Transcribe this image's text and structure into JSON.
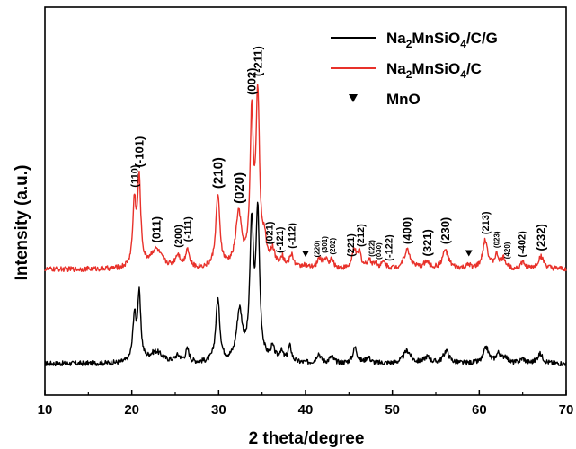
{
  "chart_data": {
    "type": "line",
    "xlabel": "2 theta/degree",
    "ylabel": "Intensity (a.u.)",
    "xlim": [
      10,
      70
    ],
    "xticks": [
      10,
      20,
      30,
      40,
      50,
      60,
      70
    ],
    "y_tick_labels": false,
    "legend": {
      "position": "top-right",
      "entries": [
        {
          "prefix": "Na",
          "sub1": "2",
          "mid": "MnSiO",
          "sub2": "4",
          "suffix": "/C/G",
          "color": "#000000",
          "marker": "line"
        },
        {
          "prefix": "Na",
          "sub1": "2",
          "mid": "MnSiO",
          "sub2": "4",
          "suffix": "/C",
          "color": "#e8312a",
          "marker": "line"
        },
        {
          "prefix": "MnO",
          "sub1": "",
          "mid": "",
          "sub2": "",
          "suffix": "",
          "color": "#000000",
          "marker": "triangle-down"
        }
      ]
    },
    "series": [
      {
        "name": "Na2MnSiO4/C/G",
        "color": "#000000",
        "baseline": 0.0,
        "noise": 0.008,
        "peaks": [
          {
            "x": 20.3,
            "h": 0.14,
            "w": 0.22
          },
          {
            "x": 20.85,
            "h": 0.21,
            "w": 0.22
          },
          {
            "x": 22.8,
            "h": 0.035,
            "w": 0.9
          },
          {
            "x": 25.3,
            "h": 0.02,
            "w": 0.4
          },
          {
            "x": 26.4,
            "h": 0.04,
            "w": 0.25
          },
          {
            "x": 29.9,
            "h": 0.2,
            "w": 0.28
          },
          {
            "x": 32.4,
            "h": 0.16,
            "w": 0.4
          },
          {
            "x": 33.8,
            "h": 0.42,
            "w": 0.25
          },
          {
            "x": 34.5,
            "h": 0.46,
            "w": 0.25
          },
          {
            "x": 36.2,
            "h": 0.04,
            "w": 0.3
          },
          {
            "x": 37.2,
            "h": 0.03,
            "w": 0.3
          },
          {
            "x": 38.2,
            "h": 0.05,
            "w": 0.25
          },
          {
            "x": 41.5,
            "h": 0.03,
            "w": 0.3
          },
          {
            "x": 43.0,
            "h": 0.02,
            "w": 0.3
          },
          {
            "x": 45.7,
            "h": 0.05,
            "w": 0.3
          },
          {
            "x": 47.2,
            "h": 0.02,
            "w": 0.3
          },
          {
            "x": 51.7,
            "h": 0.04,
            "w": 0.5
          },
          {
            "x": 54.0,
            "h": 0.02,
            "w": 0.4
          },
          {
            "x": 56.2,
            "h": 0.04,
            "w": 0.4
          },
          {
            "x": 60.8,
            "h": 0.05,
            "w": 0.35
          },
          {
            "x": 62.2,
            "h": 0.03,
            "w": 0.35
          },
          {
            "x": 63.0,
            "h": 0.02,
            "w": 0.3
          },
          {
            "x": 65.0,
            "h": 0.015,
            "w": 0.3
          },
          {
            "x": 67.0,
            "h": 0.03,
            "w": 0.4
          }
        ]
      },
      {
        "name": "Na2MnSiO4/C",
        "color": "#e8312a",
        "baseline": 0.3,
        "noise": 0.008,
        "peaks": [
          {
            "x": 20.3,
            "h": 0.2,
            "w": 0.22
          },
          {
            "x": 20.85,
            "h": 0.27,
            "w": 0.22
          },
          {
            "x": 22.8,
            "h": 0.06,
            "w": 0.8
          },
          {
            "x": 25.3,
            "h": 0.04,
            "w": 0.35
          },
          {
            "x": 26.4,
            "h": 0.06,
            "w": 0.25
          },
          {
            "x": 29.9,
            "h": 0.23,
            "w": 0.28
          },
          {
            "x": 32.3,
            "h": 0.17,
            "w": 0.4
          },
          {
            "x": 33.8,
            "h": 0.46,
            "w": 0.22
          },
          {
            "x": 34.5,
            "h": 0.54,
            "w": 0.25
          },
          {
            "x": 35.3,
            "h": 0.07,
            "w": 0.25
          },
          {
            "x": 36.2,
            "h": 0.05,
            "w": 0.3
          },
          {
            "x": 37.3,
            "h": 0.03,
            "w": 0.3
          },
          {
            "x": 38.4,
            "h": 0.04,
            "w": 0.3
          },
          {
            "x": 39.8,
            "h": 0.01,
            "w": 0.3
          },
          {
            "x": 41.6,
            "h": 0.03,
            "w": 0.3
          },
          {
            "x": 42.3,
            "h": 0.025,
            "w": 0.3
          },
          {
            "x": 43.0,
            "h": 0.025,
            "w": 0.3
          },
          {
            "x": 45.6,
            "h": 0.06,
            "w": 0.25
          },
          {
            "x": 46.2,
            "h": 0.05,
            "w": 0.25
          },
          {
            "x": 47.3,
            "h": 0.025,
            "w": 0.3
          },
          {
            "x": 48.0,
            "h": 0.015,
            "w": 0.3
          },
          {
            "x": 49.0,
            "h": 0.02,
            "w": 0.3
          },
          {
            "x": 51.7,
            "h": 0.06,
            "w": 0.45
          },
          {
            "x": 53.9,
            "h": 0.02,
            "w": 0.4
          },
          {
            "x": 56.1,
            "h": 0.06,
            "w": 0.4
          },
          {
            "x": 58.8,
            "h": 0.01,
            "w": 0.3
          },
          {
            "x": 60.7,
            "h": 0.09,
            "w": 0.35
          },
          {
            "x": 62.0,
            "h": 0.04,
            "w": 0.3
          },
          {
            "x": 62.8,
            "h": 0.03,
            "w": 0.3
          },
          {
            "x": 65.0,
            "h": 0.02,
            "w": 0.3
          },
          {
            "x": 67.1,
            "h": 0.04,
            "w": 0.4
          }
        ]
      }
    ],
    "peak_labels": [
      {
        "text": "(110)",
        "x": 20.3,
        "size": "s"
      },
      {
        "text": "(-101)",
        "x": 20.85,
        "size": "m"
      },
      {
        "text": "(011)",
        "x": 22.8,
        "size": "m"
      },
      {
        "text": "(200)",
        "x": 25.3,
        "size": "s"
      },
      {
        "text": "(-111)",
        "x": 26.4,
        "size": "s"
      },
      {
        "text": "(210)",
        "x": 29.9,
        "size": "l"
      },
      {
        "text": "(020)",
        "x": 32.3,
        "size": "l"
      },
      {
        "text": "(002)",
        "x": 33.8,
        "size": "m"
      },
      {
        "text": "(-211)",
        "x": 34.5,
        "size": "m"
      },
      {
        "text": "(021)",
        "x": 35.8,
        "size": "s"
      },
      {
        "text": "(-121)",
        "x": 37.0,
        "size": "s"
      },
      {
        "text": "(-112)",
        "x": 38.4,
        "size": "s"
      },
      {
        "text": "(220)",
        "x": 41.3,
        "size": "xs"
      },
      {
        "text": "(301)",
        "x": 42.2,
        "size": "xs"
      },
      {
        "text": "(202)",
        "x": 43.1,
        "size": "xs"
      },
      {
        "text": "(221)",
        "x": 45.2,
        "size": "s"
      },
      {
        "text": "(212)",
        "x": 46.3,
        "size": "s"
      },
      {
        "text": "(022)",
        "x": 47.6,
        "size": "xs"
      },
      {
        "text": "(030)",
        "x": 48.4,
        "size": "xs"
      },
      {
        "text": "(-122)",
        "x": 49.6,
        "size": "s"
      },
      {
        "text": "(400)",
        "x": 51.7,
        "size": "m"
      },
      {
        "text": "(321)",
        "x": 54.0,
        "size": "m"
      },
      {
        "text": "(230)",
        "x": 56.1,
        "size": "m"
      },
      {
        "text": "(213)",
        "x": 60.7,
        "size": "s"
      },
      {
        "text": "(023)",
        "x": 62.0,
        "size": "xs"
      },
      {
        "text": "(420)",
        "x": 63.2,
        "size": "xs"
      },
      {
        "text": "(-402)",
        "x": 64.9,
        "size": "s"
      },
      {
        "text": "(232)",
        "x": 67.1,
        "size": "m"
      }
    ],
    "mno_markers": [
      40.0,
      58.8
    ]
  }
}
